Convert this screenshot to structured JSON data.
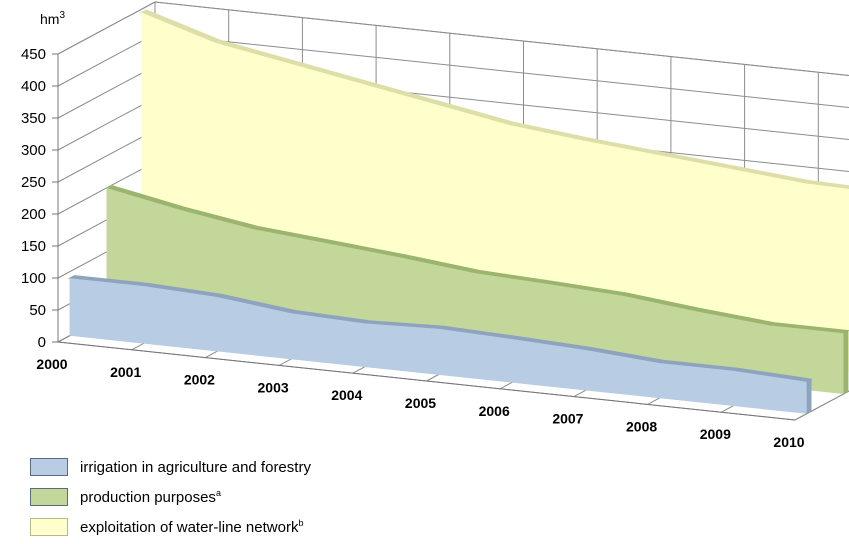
{
  "chart_data": {
    "type": "area",
    "title": "",
    "unit_label": "hm",
    "unit_superscript": "3",
    "xlabel": "",
    "ylabel": "",
    "ylim": [
      0,
      450
    ],
    "yticks": [
      "0",
      "50",
      "100",
      "150",
      "200",
      "250",
      "300",
      "350",
      "400",
      "450"
    ],
    "categories": [
      "2000",
      "2001",
      "2002",
      "2003",
      "2004",
      "2005",
      "2006",
      "2007",
      "2008",
      "2009",
      "2010"
    ],
    "grid": true,
    "legend_position": "bottom-left",
    "series": [
      {
        "name": "irrigation in agriculture and forestry",
        "sup": "",
        "color": "#b8cce4",
        "edge_color": "#8ea3bd",
        "values": [
          90,
          90,
          85,
          72,
          68,
          72,
          68,
          63,
          55,
          55,
          50
        ]
      },
      {
        "name": "production purposes",
        "sup": "a",
        "color": "#c4d79b",
        "edge_color": "#9bb46e",
        "values": [
          200,
          178,
          160,
          150,
          140,
          128,
          123,
          117,
          105,
          95,
          95
        ]
      },
      {
        "name": "exploitation of water-line network",
        "sup": "b",
        "color": "#ffffcc",
        "edge_color": "#dedea8",
        "values": [
          445,
          410,
          390,
          370,
          350,
          330,
          318,
          308,
          298,
          288,
          285
        ]
      }
    ]
  }
}
